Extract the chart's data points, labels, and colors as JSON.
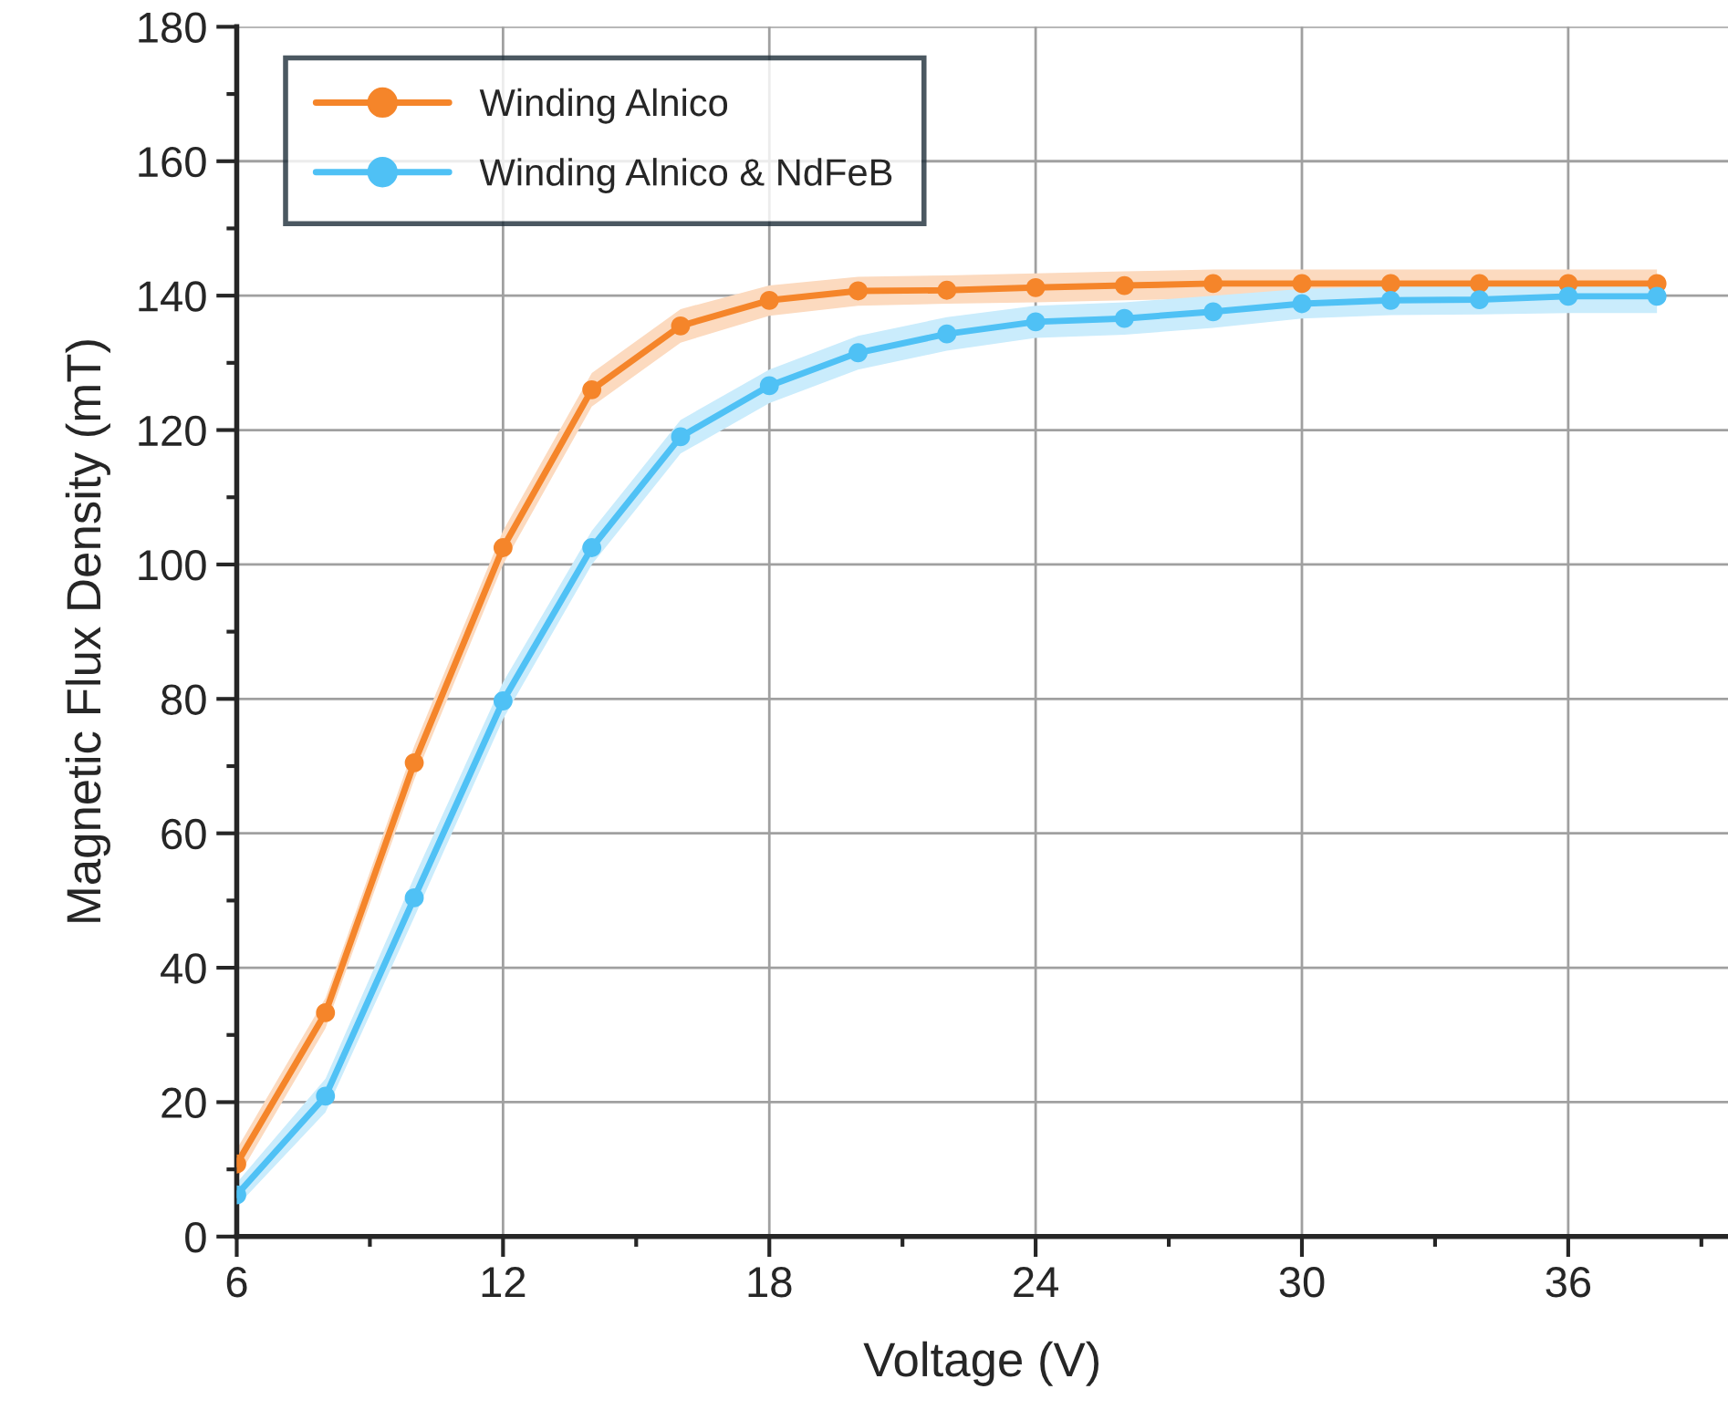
{
  "chart_data": {
    "type": "line",
    "xlabel": "Voltage (V)",
    "ylabel": "Magnetic Flux Density (mT)",
    "x": [
      6,
      8,
      10,
      12,
      14,
      16,
      18,
      20,
      22,
      24,
      26,
      28,
      30,
      32,
      34,
      36,
      38
    ],
    "xlim": [
      6,
      39.6
    ],
    "xticks": [
      6,
      {
        "value": 9,
        "label": null
      },
      12,
      {
        "value": 15,
        "label": null
      },
      18,
      {
        "value": 21,
        "label": null
      },
      24,
      {
        "value": 27,
        "label": null
      },
      30,
      {
        "value": 33,
        "label": null
      },
      36,
      {
        "value": 39,
        "label": null
      }
    ],
    "ylim": [
      0,
      180
    ],
    "yticks": [
      0,
      {
        "value": 10,
        "label": null
      },
      20,
      {
        "value": 30,
        "label": null
      },
      40,
      {
        "value": 50,
        "label": null
      },
      60,
      {
        "value": 70,
        "label": null
      },
      80,
      {
        "value": 90,
        "label": null
      },
      100,
      {
        "value": 110,
        "label": null
      },
      120,
      {
        "value": 130,
        "label": null
      },
      140,
      {
        "value": 150,
        "label": null
      },
      160,
      {
        "value": 170,
        "label": null
      },
      180
    ],
    "grid": true,
    "legend": "top left",
    "marker": "circle",
    "line_style": "solid",
    "series": [
      {
        "name": "Winding Alnico",
        "color": "#f5852a",
        "values": [
          10.8,
          33.3,
          70.5,
          102.5,
          126,
          135.5,
          139.3,
          140.7,
          140.8,
          141.2,
          141.5,
          141.8,
          141.8,
          141.8,
          141.8,
          141.8,
          141.8
        ],
        "lower": [
          8.5,
          31,
          68,
          100,
          123.5,
          133,
          137,
          138.5,
          138.8,
          139,
          139.3,
          139.6,
          139.6,
          139.6,
          139.6,
          139.6,
          139.6
        ],
        "upper": [
          13,
          35.5,
          73,
          105,
          128.5,
          138,
          141.5,
          142.8,
          143,
          143.3,
          143.6,
          143.9,
          143.9,
          143.9,
          143.9,
          143.9,
          143.9
        ]
      },
      {
        "name": "Winding Alnico & NdFeB",
        "color": "#4fc1f5",
        "values": [
          6.2,
          20.9,
          50.4,
          79.7,
          102.5,
          119,
          126.6,
          131.5,
          134.3,
          136.1,
          136.6,
          137.6,
          138.8,
          139.3,
          139.4,
          139.9,
          139.9
        ],
        "lower": [
          4.5,
          18.5,
          47.5,
          77,
          100,
          116.5,
          124,
          129,
          131.8,
          133.7,
          134.2,
          135.2,
          136.6,
          137.1,
          137.2,
          137.4,
          137.4
        ],
        "upper": [
          8,
          23.5,
          53.5,
          82.5,
          105,
          121.5,
          129,
          134,
          136.8,
          138.5,
          139,
          140,
          141,
          141.4,
          141.5,
          141.8,
          141.8
        ]
      }
    ]
  }
}
